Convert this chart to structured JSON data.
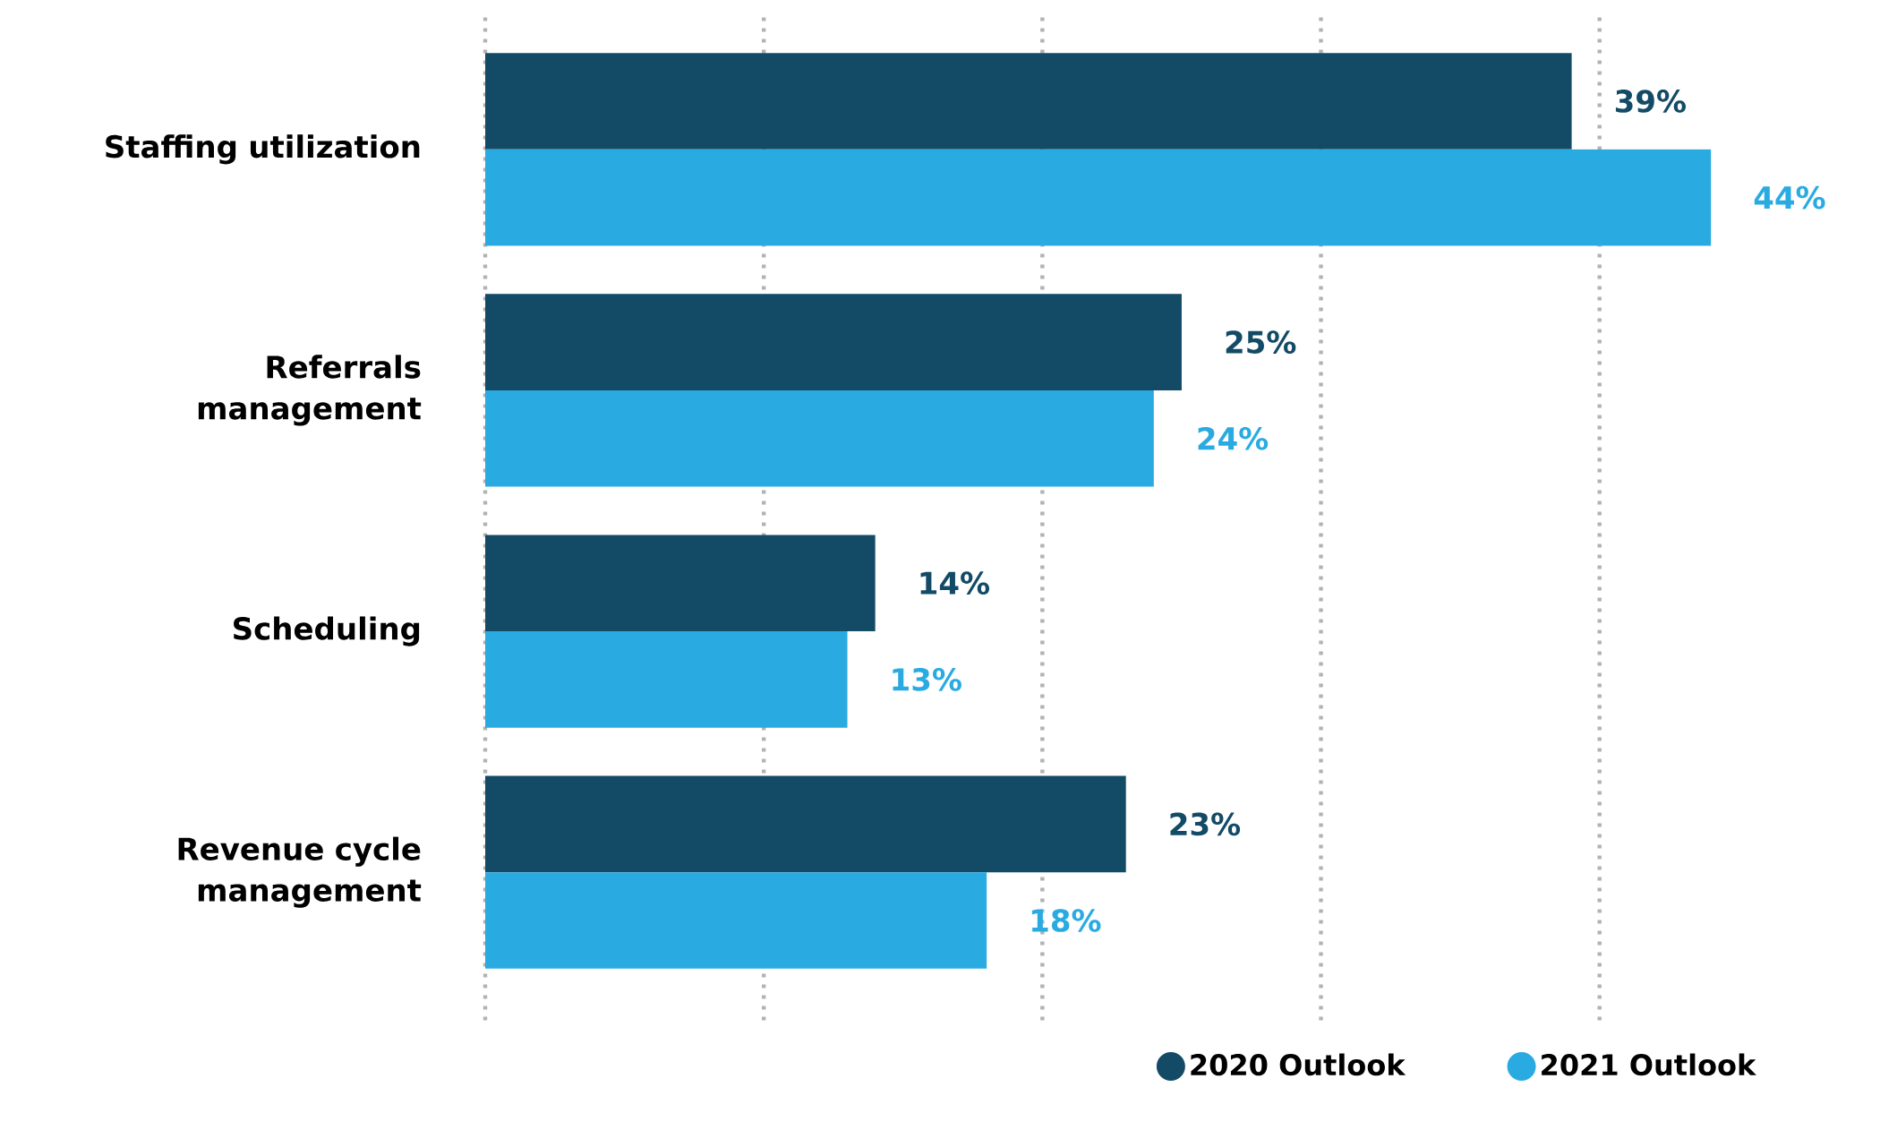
{
  "chart_data": {
    "type": "bar",
    "orientation": "horizontal",
    "categories": [
      "Staffing utilization",
      "Referrals management",
      "Scheduling",
      "Revenue cycle management"
    ],
    "series": [
      {
        "name": "2020 Outlook",
        "color": "#134b66",
        "values": [
          39,
          25,
          14,
          23
        ],
        "value_labels": [
          "39%",
          "25%",
          "14%",
          "23%"
        ]
      },
      {
        "name": "2021 Outlook",
        "color": "#29abe2",
        "values": [
          44,
          24,
          13,
          18
        ],
        "value_labels": [
          "44%",
          "24%",
          "13%",
          "18%"
        ]
      }
    ],
    "xticks": [
      {
        "value": 0,
        "label": null
      },
      {
        "value": 10,
        "label": null
      },
      {
        "value": 20,
        "label": null
      },
      {
        "value": 30,
        "label": null
      },
      {
        "value": 40,
        "label": null
      }
    ],
    "grid": "x",
    "legend": "bottom right"
  }
}
